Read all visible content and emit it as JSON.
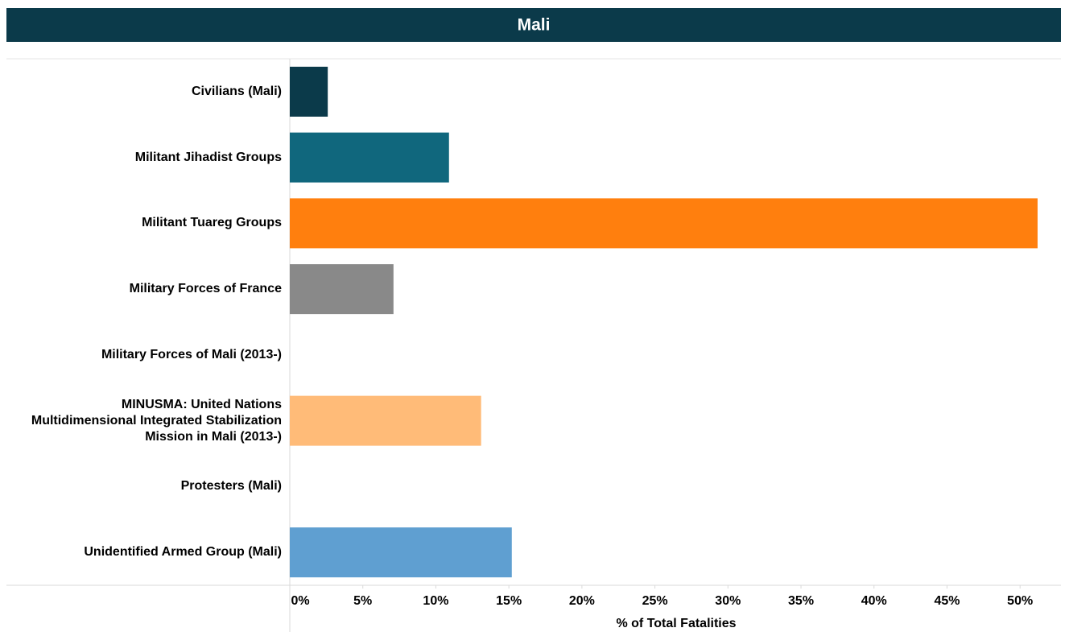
{
  "chart_data": {
    "type": "hbar",
    "title": "Mali",
    "x_axis_label": "% of Total Fatalities",
    "categories": [
      "Civilians (Mali)",
      "Militant Jihadist Groups",
      "Militant Tuareg Groups",
      "Military Forces of France",
      "Military Forces of Mali (2013-)",
      "MINUSMA: United Nations Multidimensional Integrated Stabilization Mission in Mali (2013-)",
      "Protesters (Mali)",
      "Unidentified Armed Group (Mali)"
    ],
    "values": [
      2.6,
      10.9,
      51.2,
      7.1,
      0,
      13.1,
      0,
      15.2
    ],
    "colors": [
      "#0b3a4a",
      "#10677d",
      "#ff7f0e",
      "#898989",
      "#0f6b2f",
      "#ffbb78",
      "#999999",
      "#5f9fd1"
    ],
    "xlim": [
      0,
      52.8
    ],
    "xticks": [
      {
        "value": 0,
        "label": "0%"
      },
      {
        "value": 5,
        "label": "5%"
      },
      {
        "value": 10,
        "label": "10%"
      },
      {
        "value": 15,
        "label": "15%"
      },
      {
        "value": 20,
        "label": "20%"
      },
      {
        "value": 25,
        "label": "25%"
      },
      {
        "value": 30,
        "label": "30%"
      },
      {
        "value": 35,
        "label": "35%"
      },
      {
        "value": 40,
        "label": "40%"
      },
      {
        "value": 45,
        "label": "45%"
      },
      {
        "value": 50,
        "label": "50%"
      }
    ],
    "grid": false
  }
}
